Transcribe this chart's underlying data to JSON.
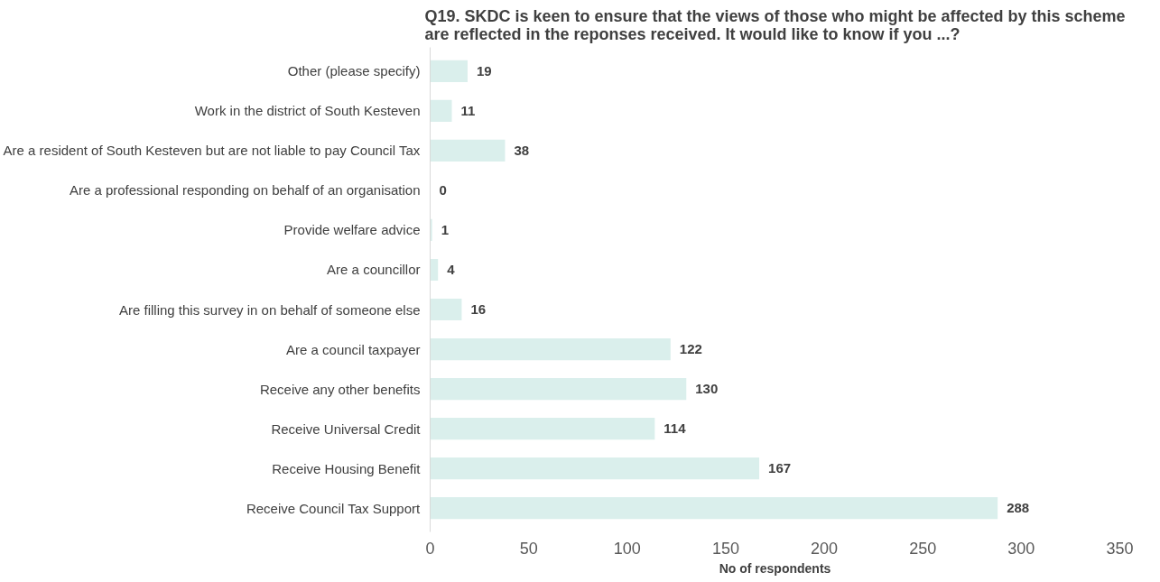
{
  "chart_data": {
    "type": "bar",
    "orientation": "horizontal",
    "title": "Q19. SKDC is keen to ensure that the views of those who might be affected by this scheme\nare reflected in the reponses received. It would like to know if you ...?",
    "xlabel": "No of respondents",
    "categories": [
      "Other (please specify)",
      "Work in the district of South Kesteven",
      "Are a resident of South Kesteven but are not liable to pay Council Tax",
      "Are a professional responding on behalf of an organisation",
      "Provide welfare advice",
      "Are a councillor",
      "Are filling this survey in on behalf of someone else",
      "Are a council taxpayer",
      "Receive any other benefits",
      "Receive Universal Credit",
      "Receive Housing Benefit",
      "Receive Council Tax Support"
    ],
    "values": [
      19,
      11,
      38,
      0,
      1,
      4,
      16,
      122,
      130,
      114,
      167,
      288
    ],
    "color": "#daefec",
    "data_labels": true,
    "xlim": [
      0,
      350
    ],
    "xticks": [
      0,
      50,
      100,
      150,
      200,
      250,
      300,
      350
    ],
    "grid": false
  }
}
